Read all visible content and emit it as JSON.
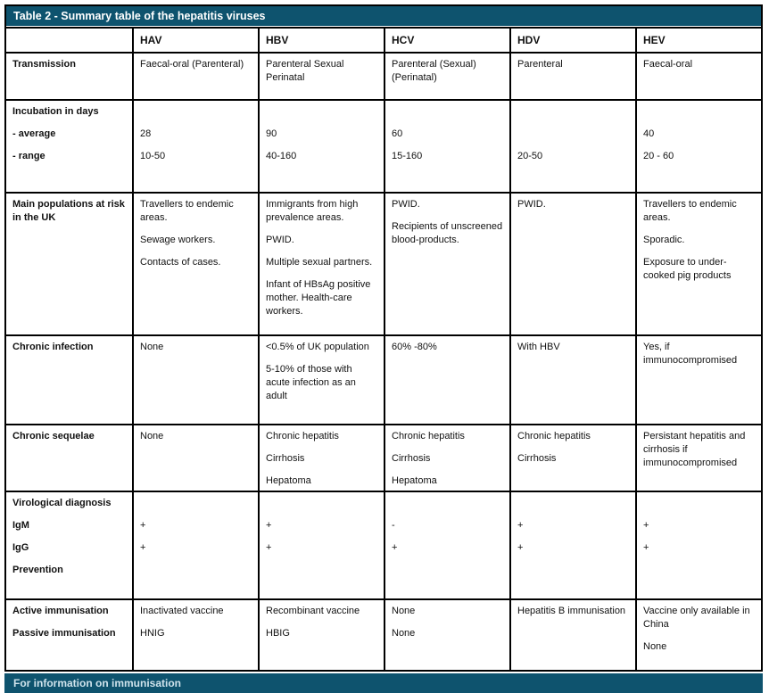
{
  "table": {
    "title": "Table 2 - Summary table of the hepatitis viruses",
    "title_bar_color": "#0e536e",
    "border_color": "#000000",
    "header": [
      "",
      "HAV",
      "HBV",
      "HCV",
      "HDV",
      "HEV"
    ],
    "rows": [
      {
        "name": "transmission",
        "cells": [
          [
            "Transmission"
          ],
          [
            "Faecal-oral (Parenteral)"
          ],
          [
            "Parenteral Sexual Perinatal"
          ],
          [
            "Parenteral (Sexual) (Perinatal)"
          ],
          [
            "Parenteral"
          ],
          [
            "Faecal-oral"
          ]
        ]
      },
      {
        "name": "incubation",
        "cells": [
          [
            "Incubation in days",
            "- average",
            "- range"
          ],
          [
            "",
            "28",
            "10-50"
          ],
          [
            "",
            "90",
            "40-160"
          ],
          [
            "",
            "60",
            "15-160"
          ],
          [
            "",
            "",
            "20-50"
          ],
          [
            "",
            "40",
            "20 - 60"
          ]
        ]
      },
      {
        "name": "populations",
        "cells": [
          [
            "Main populations at risk in the UK"
          ],
          [
            "Travellers to endemic areas.",
            "Sewage workers.",
            "Contacts of cases."
          ],
          [
            "Immigrants from high prevalence areas.",
            "PWID.",
            "Multiple sexual partners.",
            "Infant of HBsAg positive mother. Health-care workers."
          ],
          [
            "PWID.",
            "Recipients of unscreened blood-products."
          ],
          [
            "PWID."
          ],
          [
            "Travellers to endemic areas.",
            "Sporadic.",
            "Exposure to under-cooked pig products"
          ]
        ]
      },
      {
        "name": "chronic-infection",
        "cells": [
          [
            "Chronic infection"
          ],
          [
            "None"
          ],
          [
            "<0.5% of UK population",
            "5-10% of those with acute infection as an adult"
          ],
          [
            "60% -80%"
          ],
          [
            "With HBV"
          ],
          [
            "Yes, if immunocompromised"
          ]
        ]
      },
      {
        "name": "chronic-sequelae",
        "cells": [
          [
            "Chronic sequelae"
          ],
          [
            "None"
          ],
          [
            "Chronic hepatitis",
            "Cirrhosis",
            "Hepatoma"
          ],
          [
            "Chronic hepatitis",
            "Cirrhosis",
            "Hepatoma"
          ],
          [
            "Chronic hepatitis",
            "Cirrhosis"
          ],
          [
            "Persistant hepatitis and cirrhosis if immunocompromised"
          ]
        ]
      },
      {
        "name": "virological-diagnosis",
        "cells": [
          [
            "Virological diagnosis",
            "IgM",
            "IgG",
            "Prevention"
          ],
          [
            "",
            "+",
            "+"
          ],
          [
            "",
            "+",
            "+"
          ],
          [
            "",
            "-",
            "+"
          ],
          [
            "",
            "+",
            "+"
          ],
          [
            "",
            "+",
            "+"
          ]
        ]
      },
      {
        "name": "immunisation",
        "cells": [
          [
            "Active immunisation",
            "Passive immunisation"
          ],
          [
            "Inactivated vaccine",
            "HNIG"
          ],
          [
            "Recombinant vaccine",
            "HBIG"
          ],
          [
            "None",
            "None"
          ],
          [
            "Hepatitis B immunisation",
            ""
          ],
          [
            "Vaccine only available in China",
            "None"
          ]
        ]
      }
    ]
  },
  "footer": {
    "clipped_text": "For information on immunisation"
  }
}
